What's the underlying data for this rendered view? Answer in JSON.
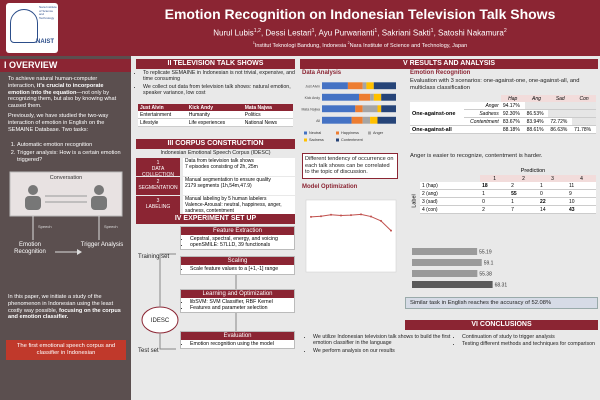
{
  "header": {
    "logo": "NAIST",
    "logo_caption": "Nara Institute of Science and Technology",
    "title": "Emotion Recognition on Indonesian Television Talk Shows",
    "authors": [
      {
        "text": "Nurul Lubis"
      },
      {
        "text": "1,2",
        "sup": true
      },
      {
        "text": ", Dessi Lestari"
      },
      {
        "text": "1",
        "sup": true
      },
      {
        "text": ", Ayu Purwarianti"
      },
      {
        "text": "1",
        "sup": true
      },
      {
        "text": ", Sakriani Sakti"
      },
      {
        "text": "1",
        "sup": true
      },
      {
        "text": ", Satoshi Nakamura"
      },
      {
        "text": "2",
        "sup": true
      }
    ],
    "affiliations": [
      {
        "text": "1",
        "sup": true
      },
      {
        "text": "Institut Teknologi Bandung, Indonesia "
      },
      {
        "text": "2",
        "sup": true
      },
      {
        "text": "Nara Institute of Science and Technology, Japan"
      }
    ]
  },
  "overview": {
    "heading": "I OVERVIEW",
    "intro": [
      {
        "text": "To achieve natural human-computer interaction, "
      },
      {
        "text": "it's crucial to incorporate emotion into the equation",
        "bold": true
      },
      {
        "text": "—not only by recognizing them, but also by knowing what caused them."
      }
    ],
    "previous": "Previously, we have studied the two-way interaction of emotion in English on the SEMAINE Database. Two tasks:",
    "tasks": [
      "Automatic emotion recognition",
      "Trigger analysis: How is a certain emotion triggered?"
    ],
    "diagram": {
      "conversation": "Conversation",
      "speech_left": "Speech",
      "speech_right": "Speech",
      "recognition": "Emotion Recognition",
      "trigger": "Trigger Analysis"
    },
    "this_paper": [
      {
        "text": "In this paper, we initiate a study of the phenomenon in Indonesian using the least costly way possible, "
      },
      {
        "text": "focusing on the corpus and emotion classifier.",
        "bold": true
      }
    ],
    "highlight": "The first emotional speech corpus and classifier in Indonesian"
  },
  "talk_shows": {
    "heading": "II TELEVISION TALK SHOWS",
    "bullets": [
      "To replicate SEMAINE in Indonesian is not trivial, expensive, and time consuming",
      "We collect out data from television talk shows: natural emotion, speaker variance, low cost"
    ],
    "table": {
      "header": [
        "Just Alvin",
        "Kick Andy",
        "Mata Najwa"
      ],
      "rows": [
        [
          "Entertainment",
          "Humanity",
          "Politics"
        ],
        [
          "Lifestyle",
          "Life experiences",
          "National News"
        ]
      ]
    }
  },
  "corpus": {
    "heading": "III CORPUS CONSTRUCTION",
    "subtitle": "Indonesian Emotional Speech Corpus (IDESC)",
    "steps": [
      {
        "number": "1",
        "name": "DATA COLLECTION",
        "lines": [
          "Data from television talk shows",
          "7 episodes consisting of 2h, 25m"
        ]
      },
      {
        "number": "2",
        "name": "SEGMENTATION",
        "lines": [
          "Manual segmentation to ensure quality",
          "2179 segments (1h,54m,47.9)"
        ]
      },
      {
        "number": "3",
        "name": "LABELING",
        "lines": [
          "Manual labeling by 5 human labelers",
          "Valence-Arousal: neutral, happiness, anger, sadness, contentment"
        ]
      }
    ]
  },
  "experiment": {
    "heading": "IV EXPERIMENT SET UP",
    "training": "Training set",
    "corpus": "IDESC",
    "test": "Test set",
    "boxes": [
      {
        "title": "Feature Extraction",
        "lines": [
          "Cepstral, spectral, energy, and voicing",
          "openSMILE: 57LLD, 39 functionals"
        ]
      },
      {
        "title": "Scaling",
        "lines": [
          "Scale feature values to a [+1,-1] range"
        ]
      },
      {
        "title": "Learning and Optimization",
        "lines": [
          "libSVM: SVM Classifier, RBF Kernel",
          "Features and parameter selection"
        ]
      },
      {
        "title": "Evaluation",
        "lines": [
          "Emotion recognition using the model"
        ]
      }
    ]
  },
  "results": {
    "heading": "V RESULTS AND ANALYSIS",
    "data_analysis": "Data Analysis",
    "data_caption": "Different tendency of occurrence on each talk shows can be correlated to the topic of discussion.",
    "model_optimization": "Model Optimization",
    "emotion_recognition": "Emotion Recognition",
    "scenarios": "Evaluation with 3 scenarios: one-against-one, one-against-all, and multiclass classification",
    "table": {
      "columns": [
        "Hap",
        "Ang",
        "Sad",
        "Con"
      ],
      "groups": [
        {
          "label": "One-against-one",
          "rows": [
            {
              "label": "Anger",
              "cells": [
                "94.17%",
                null,
                null,
                null
              ]
            },
            {
              "label": "Sadness",
              "cells": [
                "92.30%",
                "86.53%",
                null,
                null
              ]
            },
            {
              "label": "Contentment",
              "cells": [
                "83.67%",
                "83.94%",
                "72.72%",
                null
              ]
            }
          ]
        },
        {
          "label": "One-against-all",
          "rows": [
            {
              "label": null,
              "cells": [
                "88.18%",
                "88.61%",
                "86.63%",
                "71.78%"
              ]
            }
          ]
        }
      ]
    },
    "finding": "Anger is easier to recognize, contentment is harder.",
    "confusion": {
      "prediction": "Prediction",
      "label": "Label",
      "columns": [
        "1",
        "2",
        "3",
        "4"
      ],
      "rows": [
        {
          "label": "1 (hap)",
          "values": [
            18,
            2,
            1,
            11
          ]
        },
        {
          "label": "2 (ang)",
          "values": [
            1,
            55,
            0,
            9
          ]
        },
        {
          "label": "3 (sad)",
          "values": [
            0,
            1,
            22,
            10
          ]
        },
        {
          "label": "4 (con)",
          "values": [
            2,
            7,
            14,
            43
          ]
        }
      ]
    },
    "english": "Similar task in English reaches the accuracy of 52.08%"
  },
  "conclusions": {
    "heading": "VI CONCLUSIONS",
    "left": [
      "We utilize Indonesian television talk shows to build the first emotion classifier in the language",
      "We perform analysis on our results"
    ],
    "right": [
      "Continuation of study to trigger analysis",
      "Testing different methods and techniques for comparison"
    ]
  },
  "chart_data": [
    {
      "type": "stacked-hbar",
      "categories": [
        "Just Alvin",
        "Kick Andy",
        "Mata Najwa",
        "All"
      ],
      "series": [
        {
          "name": "Neutral",
          "color": "#4472c4",
          "values": [
            35,
            50,
            45,
            40
          ]
        },
        {
          "name": "Happiness",
          "color": "#ed7d31",
          "values": [
            20,
            15,
            10,
            15
          ]
        },
        {
          "name": "Anger",
          "color": "#a5a5a5",
          "values": [
            5,
            5,
            20,
            10
          ]
        },
        {
          "name": "Sadness",
          "color": "#ffc000",
          "values": [
            10,
            10,
            5,
            10
          ]
        },
        {
          "name": "Contentment",
          "color": "#264478",
          "values": [
            30,
            20,
            20,
            25
          ]
        }
      ],
      "xlim": [
        0,
        100
      ]
    },
    {
      "type": "line",
      "x": [
        1,
        2,
        3,
        4,
        5,
        6,
        7,
        8,
        9
      ],
      "series": [
        {
          "color": "#c0504d",
          "values": [
            85.3,
            85.5,
            85.9,
            85.7,
            85.8,
            86.0,
            85.4,
            84.2,
            81.5
          ]
        }
      ],
      "ylim": [
        70,
        90
      ],
      "xlim": [
        0.5,
        9.5
      ]
    },
    {
      "type": "hbar",
      "values": [
        55.19,
        59.1,
        55.38,
        68.31
      ],
      "colors": [
        "#9a9a9a",
        "#9a9a9a",
        "#9a9a9a",
        "#5a5a5a"
      ],
      "xlim": [
        0,
        100
      ]
    }
  ]
}
